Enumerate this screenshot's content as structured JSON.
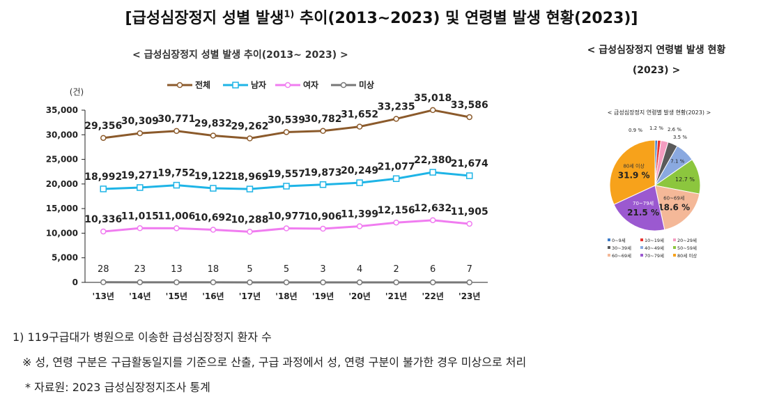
{
  "title_main": "[급성심장정지 성별 발생",
  "title_sup": "1)",
  "title_rest": " 추이(2013~2023) 및 연령별 발생 현황(2023)]",
  "line_chart_title": "< 급성심장정지 성별 발생 추이(2013~ 2023) >",
  "pie_title_outer_line1": "< 급성심장정지 연령별 발생 현황",
  "pie_title_outer_line2": "(2023) >",
  "footnote1": "1) 119구급대가 병원으로 이송한 급성심장정지 환자 수",
  "footnote2": "※ 성, 연령 구분은 구급활동일지를 기준으로 산출, 구급 과정에서 성, 연령 구분이 불가한 경우 미상으로 처리",
  "footnote3": "* 자료원: 2023 급성심장정지조사 통계",
  "chart_data": [
    {
      "type": "line",
      "title": "< 급성심장정지 성별 발생 추이(2013~ 2023) >",
      "unit_label": "(건)",
      "categories": [
        "'13년",
        "'14년",
        "'15년",
        "'16년",
        "'17년",
        "'18년",
        "'19년",
        "'20년",
        "'21년",
        "'22년",
        "'23년"
      ],
      "ylim": [
        0,
        35000
      ],
      "yticks": [
        0,
        5000,
        10000,
        15000,
        20000,
        25000,
        30000,
        35000
      ],
      "ytick_labels": [
        "0",
        "5,000",
        "10,000",
        "15,000",
        "20,000",
        "25,000",
        "30,000",
        "35,000"
      ],
      "legend_placement": "top",
      "series": [
        {
          "name": "전체",
          "color": "#8B5A2B",
          "marker": "circle",
          "values": [
            29356,
            30309,
            30771,
            29832,
            29262,
            30539,
            30782,
            31652,
            33235,
            35018,
            33586
          ],
          "labels": [
            "29,356",
            "30,309",
            "30,771",
            "29,832",
            "29,262",
            "30,539",
            "30,782",
            "31,652",
            "33,235",
            "35,018",
            "33,586"
          ]
        },
        {
          "name": "남자",
          "color": "#1EB4E6",
          "marker": "square",
          "values": [
            18992,
            19271,
            19752,
            19122,
            18969,
            19557,
            19873,
            20249,
            21077,
            22380,
            21674
          ],
          "labels": [
            "18,992",
            "19,271",
            "19,752",
            "19,122",
            "18,969",
            "19,557",
            "19,873",
            "20,249",
            "21,077",
            "22,380",
            "21,674"
          ]
        },
        {
          "name": "여자",
          "color": "#F07CF0",
          "marker": "circle",
          "values": [
            10336,
            11015,
            11006,
            10692,
            10288,
            10977,
            10906,
            11399,
            12156,
            12632,
            11905
          ],
          "labels": [
            "10,336",
            "11,015",
            "11,006",
            "10,692",
            "10,288",
            "10,977",
            "10,906",
            "11,399",
            "12,156",
            "12,632",
            "11,905"
          ]
        },
        {
          "name": "미상",
          "color": "#777777",
          "marker": "circle",
          "values": [
            28,
            23,
            13,
            18,
            5,
            5,
            3,
            4,
            2,
            6,
            7
          ],
          "labels": [
            "28",
            "23",
            "13",
            "18",
            "5",
            "5",
            "3",
            "4",
            "2",
            "6",
            "7"
          ]
        }
      ]
    },
    {
      "type": "pie",
      "title": "< 급성심장정지 연령별 발생 현황(2023) >",
      "slices": [
        {
          "name": "0~9세",
          "value": 0.9,
          "label": "0.9 %",
          "color": "#3E7CC8"
        },
        {
          "name": "10~19세",
          "value": 1.2,
          "label": "1.2 %",
          "color": "#E8322E"
        },
        {
          "name": "20~29세",
          "value": 2.6,
          "label": "2.6 %",
          "color": "#F49CC0"
        },
        {
          "name": "30~39세",
          "value": 3.5,
          "label": "3.5 %",
          "color": "#5A5A5A"
        },
        {
          "name": "40~49세",
          "value": 7.1,
          "label": "7.1 %",
          "color": "#8AA9E0"
        },
        {
          "name": "50~59세",
          "value": 12.7,
          "label": "12.7 %",
          "color": "#8CC63E"
        },
        {
          "name": "60~69세",
          "value": 18.6,
          "label": "18.6 %",
          "color": "#F4B898",
          "inner_name": "60~69세"
        },
        {
          "name": "70~79세",
          "value": 21.5,
          "label": "21.5 %",
          "color": "#9B59D0",
          "inner_name": "70~79세"
        },
        {
          "name": "80세 이상",
          "value": 31.9,
          "label": "31.9 %",
          "color": "#F7A21B",
          "inner_name": "80세 이상"
        }
      ],
      "legend_placement": "bottom"
    }
  ]
}
